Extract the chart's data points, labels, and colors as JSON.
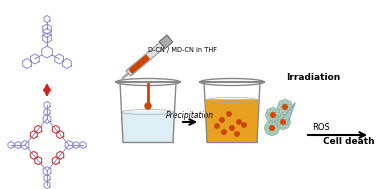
{
  "bg_color": "#ffffff",
  "mol_color_purple": "#8888cc",
  "mol_color_red": "#cc2222",
  "arrow_color": "#000000",
  "irradiation_text": "Irradiation",
  "ros_text": "ROS",
  "cell_death_text": "Cell death",
  "precipitation_text": "Precipitation",
  "label_dcn": "D-CN / MD-CN in THF",
  "light_beam_color": "#88bbdd",
  "nanoparticle_center": "#dd4400",
  "nanoparticle_petal": "#aad8c0",
  "syringe_body": "#cccccc",
  "syringe_liquid": "#cc4400",
  "beaker_outline": "#999999",
  "beaker1_water": "#ddeef5",
  "beaker2_fill": "#e8a020",
  "red_arrow_color": "#cc3333",
  "figsize": [
    3.76,
    1.89
  ],
  "dpi": 100
}
